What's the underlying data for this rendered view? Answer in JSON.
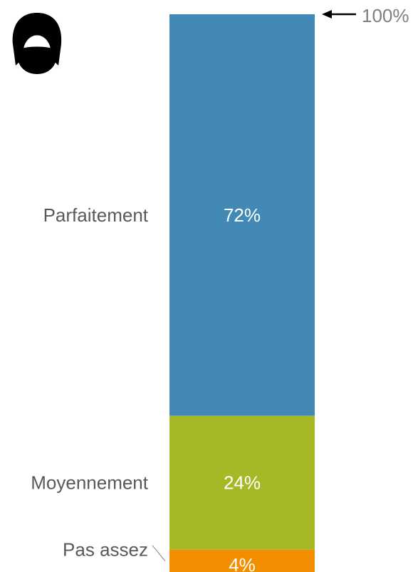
{
  "chart_data": {
    "type": "bar",
    "stacked": true,
    "orientation": "vertical",
    "categories": [
      "Parfaitement",
      "Moyennement",
      "Pas assez"
    ],
    "values": [
      72,
      24,
      4
    ],
    "value_labels": [
      "72%",
      "24%",
      "4%"
    ],
    "total_label": "100%",
    "ylim": [
      0,
      100
    ],
    "colors": [
      "#4289b5",
      "#a6b826",
      "#f28e00"
    ],
    "grid": false,
    "legend": "none"
  },
  "icon": {
    "name": "face-mask-icon"
  }
}
